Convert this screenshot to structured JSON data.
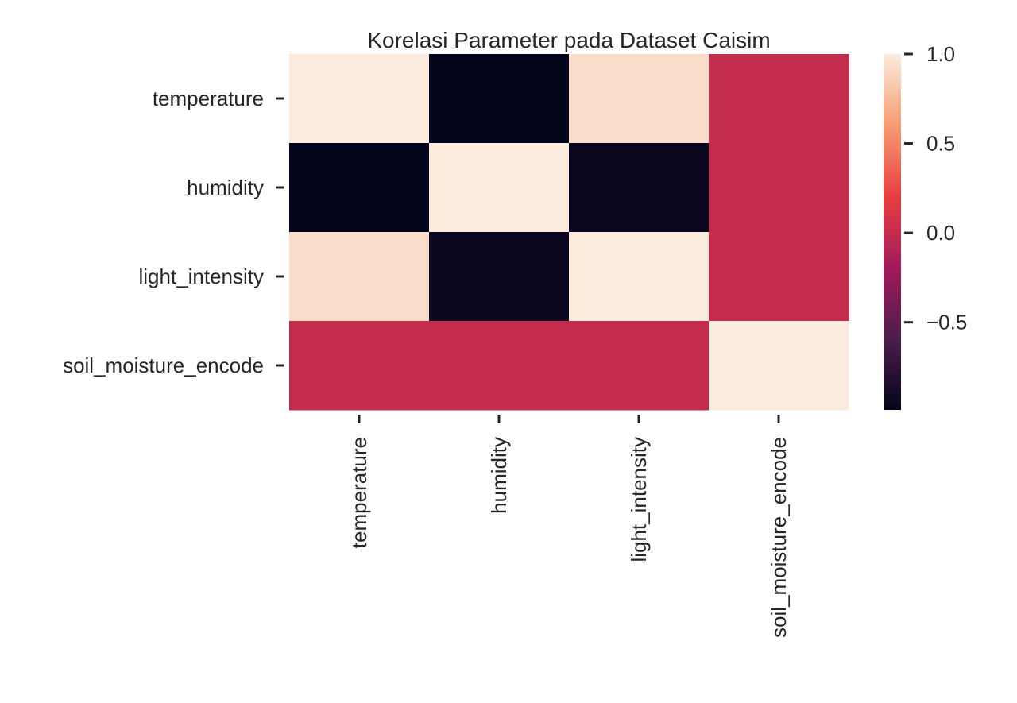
{
  "chart_data": {
    "type": "heatmap",
    "title": "Korelasi Parameter pada Dataset Caisim",
    "xlabel": "",
    "ylabel": "",
    "rows": [
      "temperature",
      "humidity",
      "light_intensity",
      "soil_moisture_encode"
    ],
    "columns": [
      "temperature",
      "humidity",
      "light_intensity",
      "soil_moisture_encode"
    ],
    "values": [
      [
        1.0,
        -0.99,
        0.93,
        0.0
      ],
      [
        -0.99,
        1.0,
        -0.95,
        0.0
      ],
      [
        0.93,
        -0.95,
        1.0,
        0.0
      ],
      [
        0.0,
        0.0,
        0.0,
        1.0
      ]
    ],
    "colorbar": {
      "min": -0.99,
      "max": 1.0,
      "ticks": [
        1.0,
        0.5,
        0.0,
        -0.5
      ],
      "tick_labels": [
        "1.0",
        "0.5",
        "0.0",
        "−0.5"
      ]
    },
    "colormap": "rocket",
    "colormap_stops": [
      "#03051a",
      "#4c1d4b",
      "#a11a5b",
      "#e83f3f",
      "#f69c73",
      "#faebdd"
    ],
    "grid": false,
    "legend": "colorbar-right"
  }
}
